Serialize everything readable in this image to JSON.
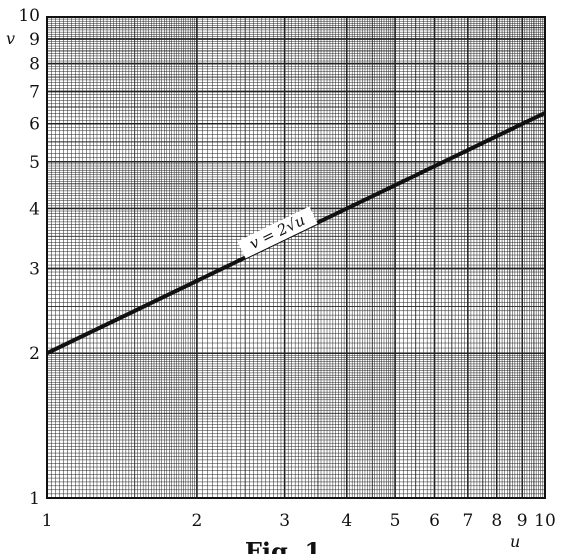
{
  "chart_data": {
    "type": "line",
    "scale": "log-log",
    "xlabel": "u",
    "ylabel": "v",
    "xlim": [
      1,
      10
    ],
    "ylim": [
      1,
      10
    ],
    "grid": true,
    "x_ticks": [
      "1",
      "2",
      "3",
      "4",
      "5",
      "6",
      "7",
      "8",
      "9",
      "10"
    ],
    "y_ticks": [
      "1",
      "2",
      "3",
      "4",
      "5",
      "6",
      "7",
      "8",
      "9",
      "10"
    ],
    "series": [
      {
        "x": [
          1,
          10
        ],
        "y": [
          2,
          6.32
        ]
      }
    ],
    "annotation": "v = 2√u",
    "caption": "Fig. 1"
  }
}
